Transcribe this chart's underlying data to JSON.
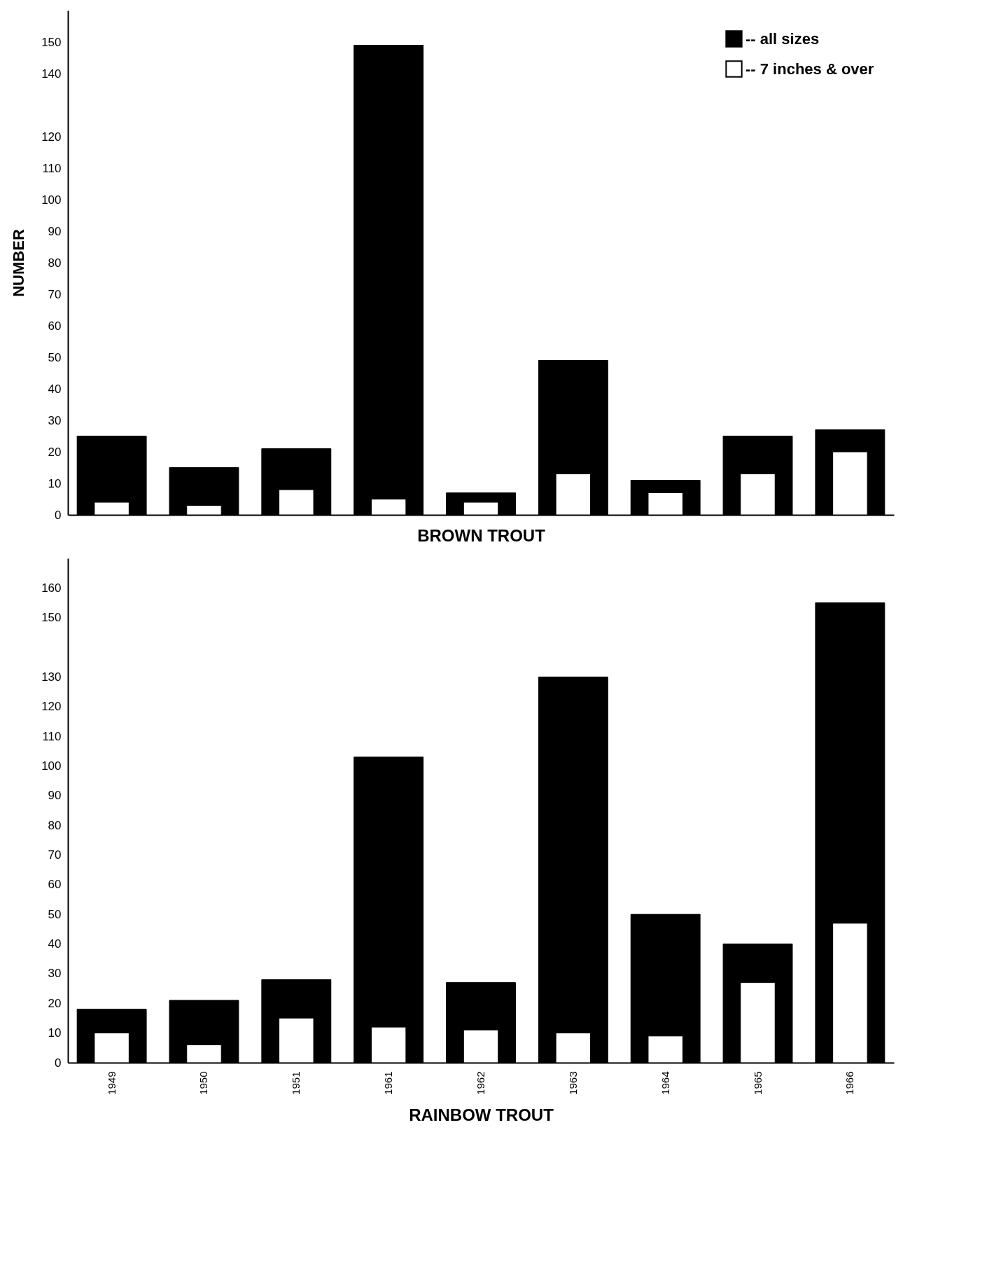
{
  "chart_data": [
    {
      "type": "bar",
      "categories": [
        "1949",
        "1950",
        "1951",
        "1961",
        "1962",
        "1963",
        "1964",
        "1965",
        "1966"
      ],
      "xlabel": "BROWN TROUT",
      "ylabel": "NUMBER",
      "tick_labels": "y",
      "legend": "top right",
      "ylim": [
        0,
        160
      ],
      "yticks": [
        0,
        10,
        20,
        30,
        40,
        50,
        60,
        70,
        80,
        90,
        100,
        110,
        120,
        140,
        150
      ],
      "series": [
        {
          "name": "-- all sizes",
          "color": "#000000",
          "values": [
            25,
            15,
            21,
            149,
            7,
            49,
            11,
            25,
            27
          ]
        },
        {
          "name": "-- 7 inches & over",
          "color": "#ffffff",
          "values": [
            4,
            3,
            8,
            5,
            4,
            13,
            7,
            13,
            20
          ]
        }
      ]
    },
    {
      "type": "bar",
      "categories": [
        "1949",
        "1950",
        "1951",
        "1961",
        "1962",
        "1963",
        "1964",
        "1965",
        "1966"
      ],
      "xlabel": "RAINBOW TROUT",
      "ylim": [
        0,
        170
      ],
      "yticks": [
        0,
        10,
        20,
        30,
        40,
        50,
        60,
        70,
        80,
        90,
        100,
        110,
        120,
        130,
        150,
        160
      ],
      "series": [
        {
          "color": "#000000",
          "values": [
            18,
            21,
            28,
            103,
            27,
            130,
            50,
            40,
            155
          ]
        },
        {
          "color": "#ffffff",
          "values": [
            10,
            6,
            15,
            12,
            11,
            10,
            9,
            27,
            47
          ]
        }
      ]
    }
  ]
}
